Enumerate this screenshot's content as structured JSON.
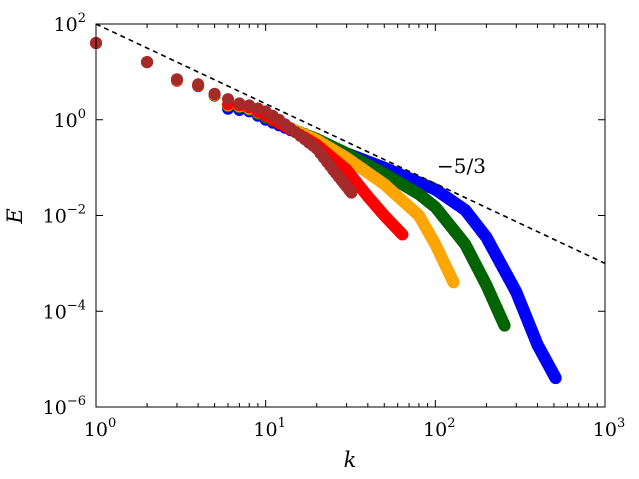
{
  "chart_data": {
    "type": "scatter",
    "xlabel": "k",
    "ylabel": "E",
    "xscale": "log",
    "yscale": "log",
    "xlim": [
      1,
      1000
    ],
    "ylim": [
      1e-06,
      100
    ],
    "grid": false,
    "x_ticks": [
      {
        "base": "10",
        "exp": "0"
      },
      {
        "base": "10",
        "exp": "1"
      },
      {
        "base": "10",
        "exp": "2"
      },
      {
        "base": "10",
        "exp": "3"
      }
    ],
    "y_ticks": [
      {
        "base": "10",
        "exp": "2"
      },
      {
        "base": "10",
        "exp": "0"
      },
      {
        "base": "10",
        "exp": "−2"
      },
      {
        "base": "10",
        "exp": "−4"
      },
      {
        "base": "10",
        "exp": "−6"
      }
    ],
    "reference_line": {
      "label": "−5/3",
      "slope": -1.6667,
      "x": [
        1,
        1000
      ],
      "y": [
        100,
        0.001
      ]
    },
    "series": [
      {
        "color": "#0000ff",
        "x": [
          1,
          2,
          3,
          4,
          5,
          6,
          7,
          8,
          10,
          15,
          20,
          30,
          50,
          100,
          150,
          200,
          300,
          400,
          512
        ],
        "y": [
          40,
          16,
          6.5,
          5.0,
          3.2,
          1.7,
          1.6,
          1.5,
          1.0,
          0.55,
          0.38,
          0.2,
          0.1,
          0.035,
          0.013,
          0.0035,
          0.00025,
          2e-05,
          4e-06
        ]
      },
      {
        "color": "#006400",
        "x": [
          1,
          2,
          3,
          4,
          5,
          6,
          7,
          8,
          10,
          15,
          20,
          30,
          50,
          80,
          100,
          150,
          200,
          256
        ],
        "y": [
          40,
          16,
          6.6,
          5.1,
          3.3,
          1.9,
          1.8,
          1.6,
          1.1,
          0.6,
          0.4,
          0.2,
          0.075,
          0.028,
          0.015,
          0.0025,
          0.00035,
          5e-05
        ]
      },
      {
        "color": "#ffa500",
        "x": [
          1,
          2,
          3,
          4,
          5,
          6,
          7,
          8,
          10,
          15,
          20,
          30,
          50,
          80,
          100,
          128
        ],
        "y": [
          40,
          16,
          6.6,
          5.2,
          3.3,
          2.0,
          1.9,
          1.7,
          1.2,
          0.6,
          0.38,
          0.16,
          0.045,
          0.01,
          0.0025,
          0.0004
        ]
      },
      {
        "color": "#ff0000",
        "x": [
          1,
          2,
          3,
          4,
          5,
          6,
          7,
          8,
          10,
          15,
          20,
          30,
          40,
          50,
          64
        ],
        "y": [
          40,
          16,
          6.8,
          5.3,
          3.4,
          2.1,
          2.0,
          1.8,
          1.2,
          0.55,
          0.3,
          0.09,
          0.025,
          0.01,
          0.004
        ]
      },
      {
        "color": "#a52a2a",
        "x": [
          1,
          2,
          3,
          4,
          5,
          6,
          7,
          8,
          10,
          12,
          15,
          20,
          25,
          32
        ],
        "y": [
          40,
          16,
          7.0,
          5.5,
          3.5,
          2.7,
          2.2,
          2.0,
          1.5,
          1.0,
          0.55,
          0.25,
          0.09,
          0.03
        ]
      }
    ]
  }
}
